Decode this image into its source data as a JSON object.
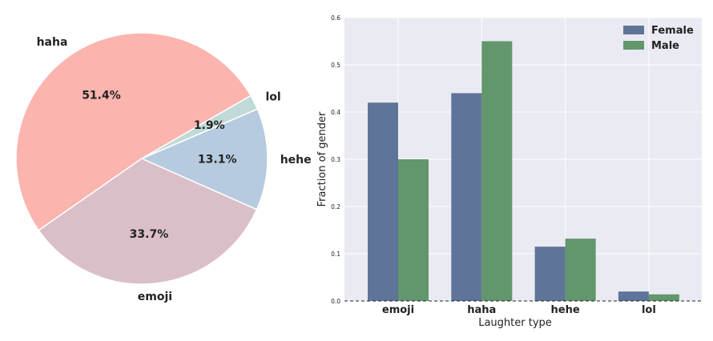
{
  "chart_data": [
    {
      "type": "pie",
      "categories": [
        "haha",
        "emoji",
        "hehe",
        "lol"
      ],
      "values": [
        51.4,
        33.7,
        13.1,
        1.9
      ],
      "percent_labels": [
        "51.4%",
        "33.7%",
        "13.1%",
        "1.9%"
      ],
      "colors": [
        "#fbb4ae",
        "#dbbfc8",
        "#b6cbe0",
        "#c0dad8"
      ]
    },
    {
      "type": "bar",
      "categories": [
        "emoji",
        "haha",
        "hehe",
        "lol"
      ],
      "series": [
        {
          "name": "Female",
          "values": [
            0.42,
            0.44,
            0.115,
            0.02
          ],
          "color": "#5f7499"
        },
        {
          "name": "Male",
          "values": [
            0.3,
            0.55,
            0.132,
            0.014
          ],
          "color": "#62966c"
        }
      ],
      "xlabel": "Laughter type",
      "ylabel": "Fraction of gender",
      "ylim": [
        0,
        0.6
      ],
      "yticks": [
        "0.0",
        "0.1",
        "0.2",
        "0.3",
        "0.4",
        "0.5",
        "0.6"
      ],
      "grid": true,
      "legend_position": "top-right",
      "background": "#eaeaf2"
    }
  ]
}
